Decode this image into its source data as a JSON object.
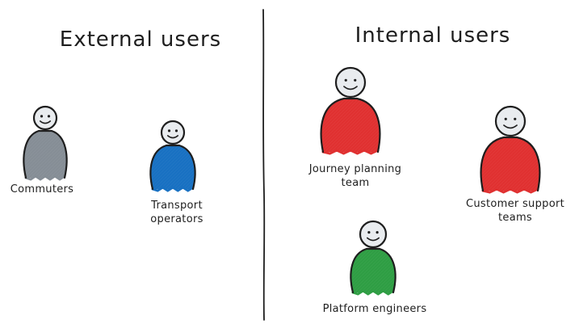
{
  "headings": {
    "external": "External users",
    "internal": "Internal users"
  },
  "people": [
    {
      "name": "commuters",
      "label_lines": [
        "Commuters"
      ],
      "color": "#868e96"
    },
    {
      "name": "transport-operators",
      "label_lines": [
        "Transport",
        "operators"
      ],
      "color": "#1971c2"
    },
    {
      "name": "journey-planning-team",
      "label_lines": [
        "Journey planning",
        "team"
      ],
      "color": "#e03131"
    },
    {
      "name": "customer-support-teams",
      "label_lines": [
        "Customer support",
        "teams"
      ],
      "color": "#e03131"
    },
    {
      "name": "platform-engineers",
      "label_lines": [
        "Platform engineers"
      ],
      "color": "#2f9e44"
    }
  ],
  "colors": {
    "ink": "#1e1e1e",
    "head_fill": "#e9ecef"
  }
}
